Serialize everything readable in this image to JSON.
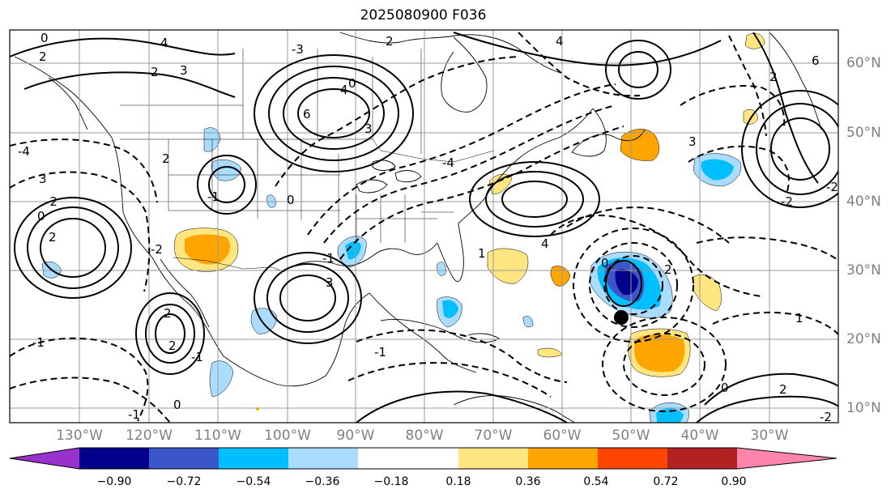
{
  "title": "2025080900 F036",
  "lon_labels": [
    "130°W",
    "120°W",
    "110°W",
    "100°W",
    "90°W",
    "80°W",
    "70°W",
    "60°W",
    "50°W",
    "40°W",
    "30°W"
  ],
  "lat_labels": [
    "60°N",
    "50°N",
    "40°N",
    "30°N",
    "20°N",
    "10°N"
  ],
  "colorbar": {
    "ticks": [
      "−0.90",
      "−0.72",
      "−0.54",
      "−0.36",
      "−0.18",
      "0.18",
      "0.36",
      "0.54",
      "0.72",
      "0.90"
    ],
    "colors": [
      "#9932cc",
      "#00008b",
      "#3a56c9",
      "#00bfff",
      "#a9dcff",
      "#ffffff",
      "#ffe680",
      "#ffa500",
      "#ff4500",
      "#b22222",
      "#ff85ad"
    ]
  },
  "contour_labels": [
    "0",
    "2",
    "4",
    "3",
    "2",
    "2",
    "-3",
    "4",
    "4",
    "6",
    "0",
    "3",
    "-4",
    "6",
    "2",
    "3",
    "3",
    "-2",
    "-4",
    "-2",
    "2",
    "-1",
    "0",
    "-2",
    "2",
    "0",
    "-2",
    "1",
    "4",
    "-1",
    "3",
    "2",
    "0",
    "2",
    "1",
    "-1",
    "2",
    "-1",
    "-1",
    "0",
    "-1",
    "2",
    "0",
    "-2"
  ],
  "markers": [
    {
      "name": "storm-center",
      "lon": "50°W",
      "lat": "22°N"
    }
  ]
}
